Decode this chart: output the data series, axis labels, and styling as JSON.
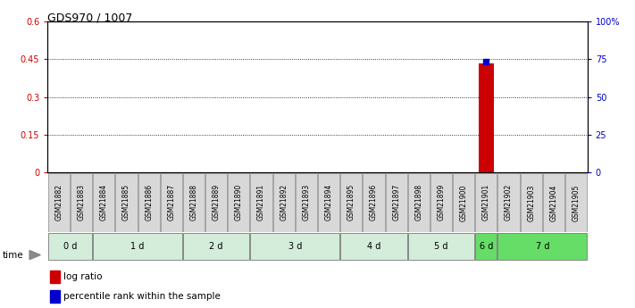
{
  "title": "GDS970 / 1007",
  "samples": [
    "GSM21882",
    "GSM21883",
    "GSM21884",
    "GSM21885",
    "GSM21886",
    "GSM21887",
    "GSM21888",
    "GSM21889",
    "GSM21890",
    "GSM21891",
    "GSM21892",
    "GSM21893",
    "GSM21894",
    "GSM21895",
    "GSM21896",
    "GSM21897",
    "GSM21898",
    "GSM21899",
    "GSM21900",
    "GSM21901",
    "GSM21902",
    "GSM21903",
    "GSM21904",
    "GSM21905"
  ],
  "time_groups": [
    {
      "label": "0 d",
      "samples": [
        "GSM21882",
        "GSM21883"
      ],
      "color": "#d4edda"
    },
    {
      "label": "1 d",
      "samples": [
        "GSM21884",
        "GSM21885",
        "GSM21886",
        "GSM21887"
      ],
      "color": "#d4edda"
    },
    {
      "label": "2 d",
      "samples": [
        "GSM21888",
        "GSM21889",
        "GSM21890"
      ],
      "color": "#d4edda"
    },
    {
      "label": "3 d",
      "samples": [
        "GSM21891",
        "GSM21892",
        "GSM21893",
        "GSM21894"
      ],
      "color": "#d4edda"
    },
    {
      "label": "4 d",
      "samples": [
        "GSM21895",
        "GSM21896",
        "GSM21897"
      ],
      "color": "#d4edda"
    },
    {
      "label": "5 d",
      "samples": [
        "GSM21898",
        "GSM21899",
        "GSM21900"
      ],
      "color": "#d4edda"
    },
    {
      "label": "6 d",
      "samples": [
        "GSM21901"
      ],
      "color": "#66dd66"
    },
    {
      "label": "7 d",
      "samples": [
        "GSM21902",
        "GSM21903",
        "GSM21904",
        "GSM21905"
      ],
      "color": "#66dd66"
    }
  ],
  "log_ratio_sample": "GSM21901",
  "log_ratio_value": 0.435,
  "percentile_value": 0.44,
  "ylim_left": [
    0,
    0.6
  ],
  "ylim_right": [
    0,
    100
  ],
  "yticks_left": [
    0,
    0.15,
    0.3,
    0.45,
    0.6
  ],
  "yticks_right": [
    0,
    25,
    50,
    75,
    100
  ],
  "ytick_labels_left": [
    "0",
    "0.15",
    "0.3",
    "0.45",
    "0.6"
  ],
  "ytick_labels_right": [
    "0",
    "25",
    "50",
    "75",
    "100%"
  ],
  "left_tick_color": "#cc0000",
  "right_tick_color": "#0000cc",
  "bar_color": "#cc0000",
  "dot_color": "#0000cc",
  "grid_color": "#000000",
  "sample_box_color": "#d8d8d8",
  "legend_bar_color": "#cc0000",
  "legend_dot_color": "#0000cc",
  "legend_texts": [
    "log ratio",
    "percentile rank within the sample"
  ],
  "title_fontsize": 9,
  "tick_fontsize": 7,
  "sample_fontsize": 5.5,
  "time_group_fontsize": 7,
  "legend_fontsize": 7.5
}
